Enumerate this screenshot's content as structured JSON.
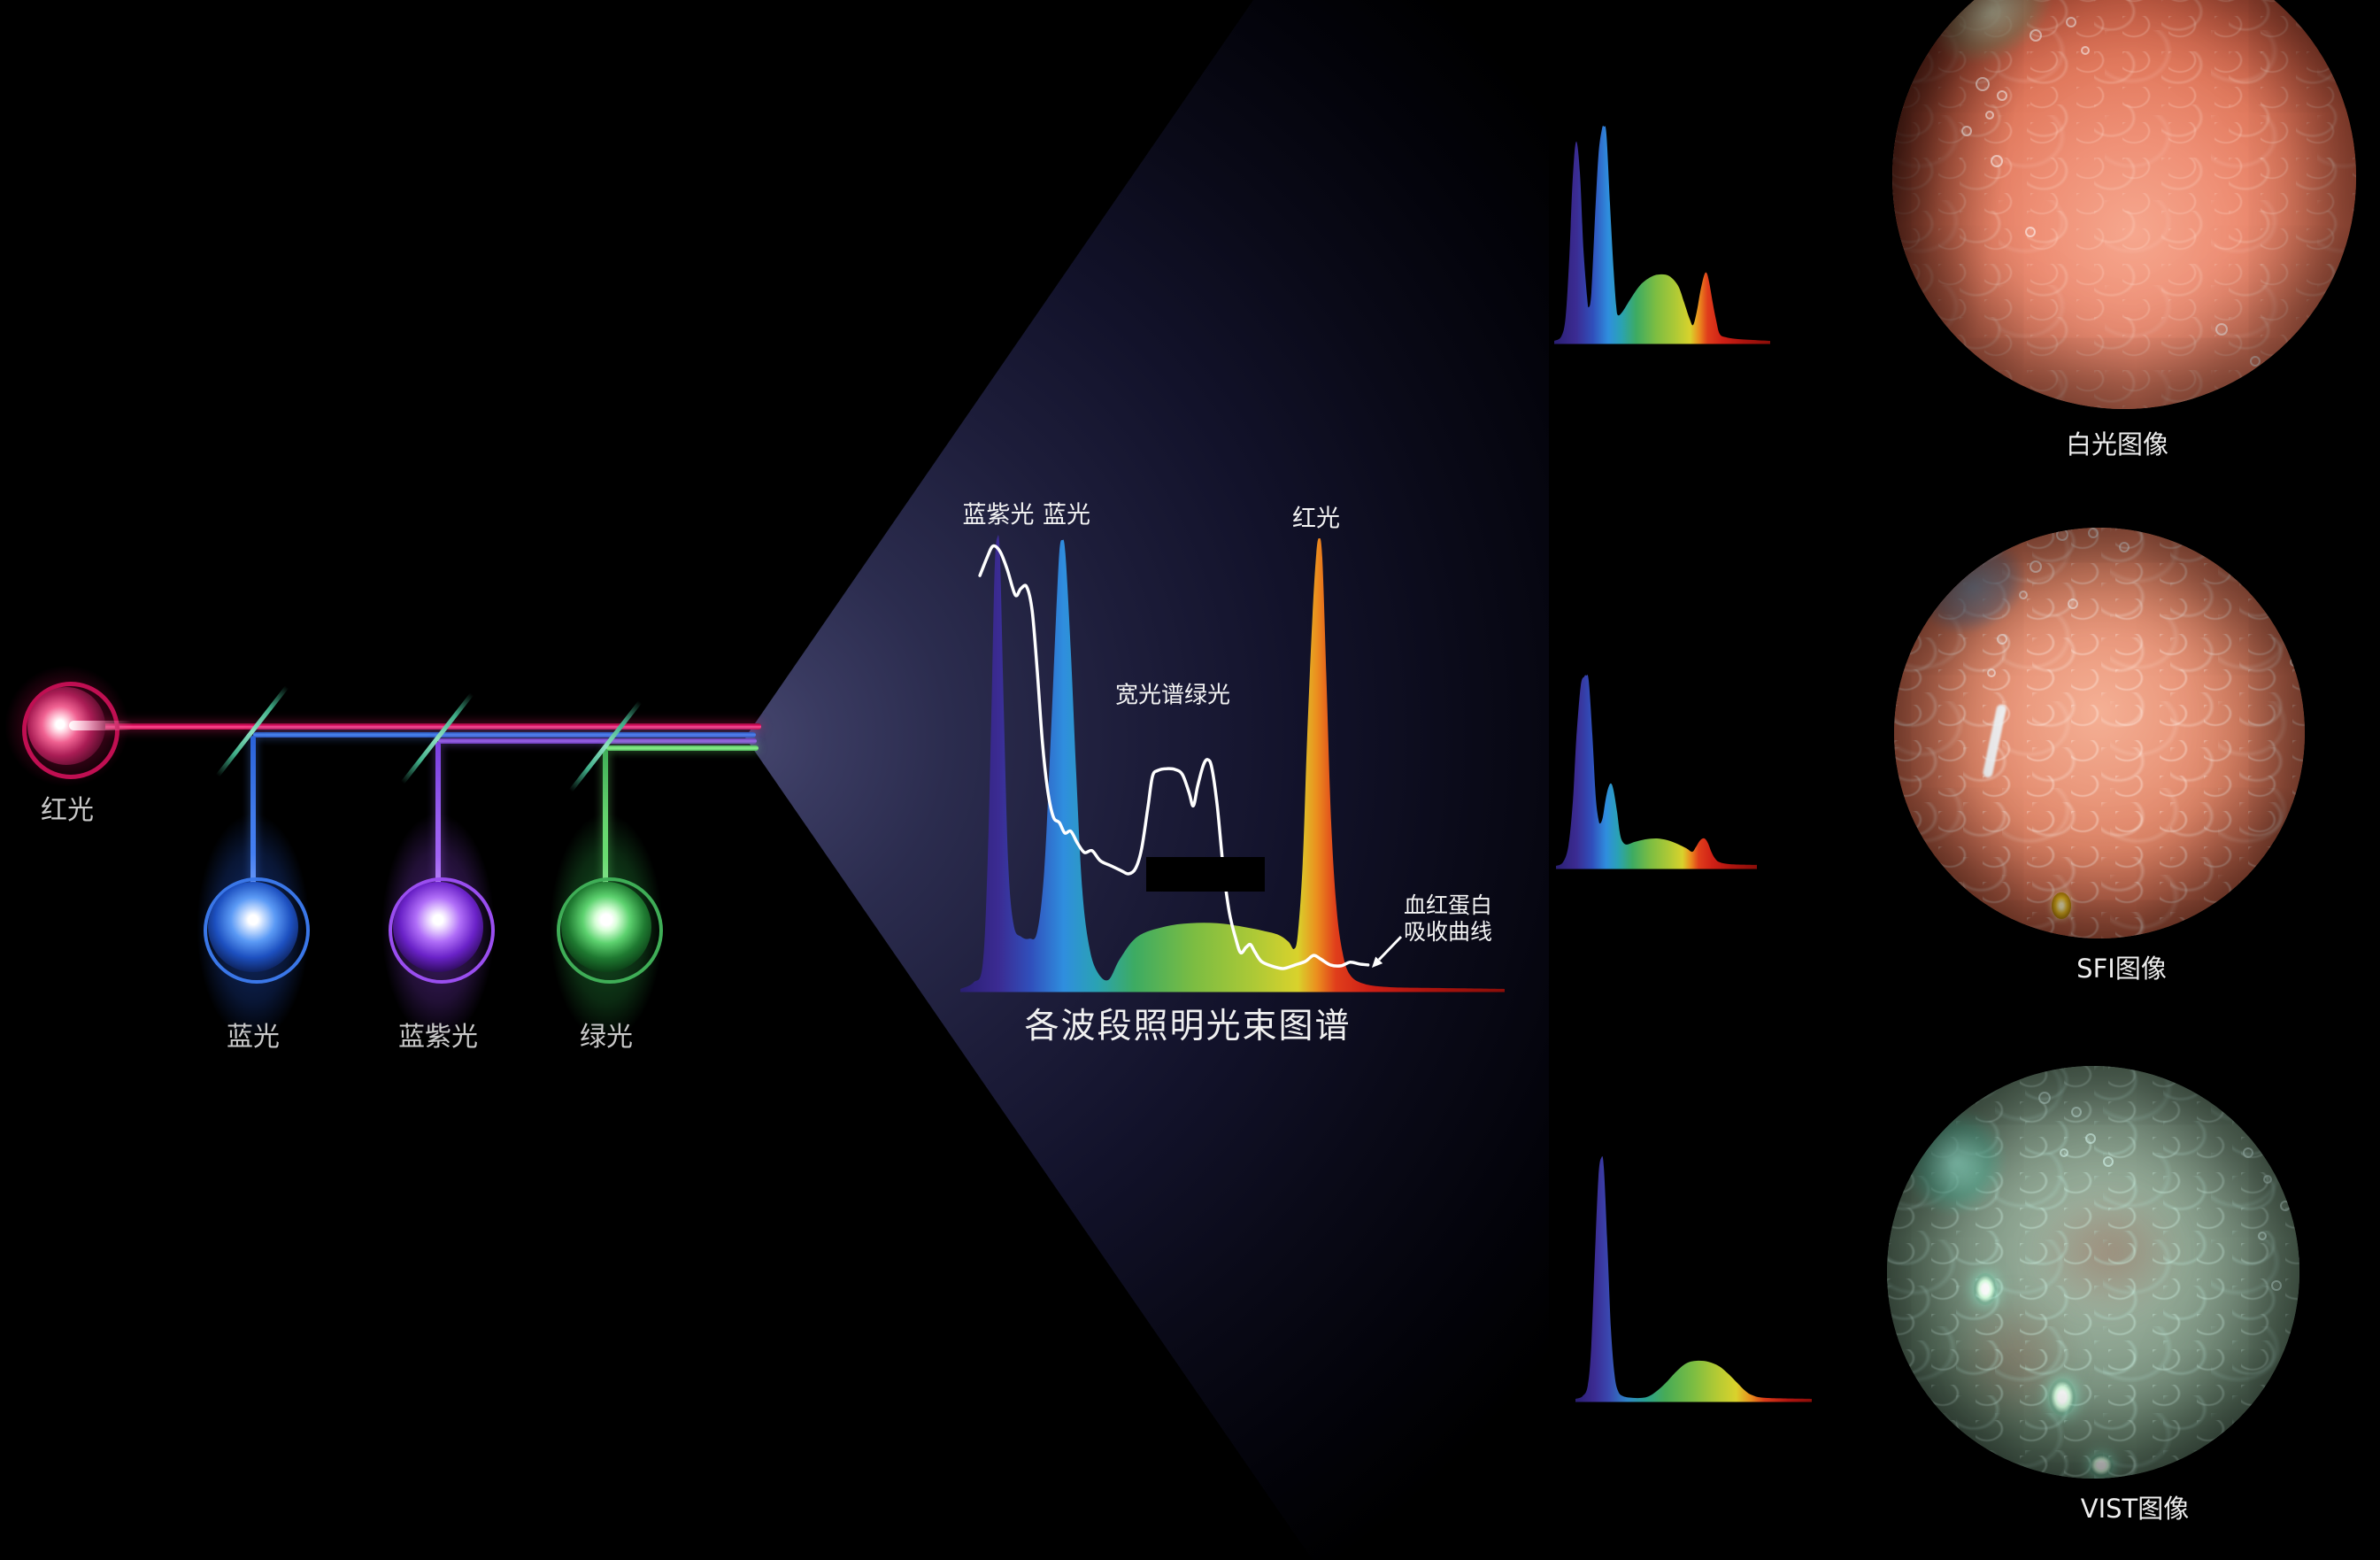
{
  "colors": {
    "background": "#000000",
    "wedge_core": "#45466e",
    "beam_red": "#e41163",
    "beam_blue": "#4b86f2",
    "beam_violet": "#9a63e8",
    "beam_green": "#8df08d",
    "mirror": "#5fc9a4",
    "label_gray": "#c9c9c9",
    "label_white": "#f4f4f4"
  },
  "left_diagram": {
    "sources": [
      {
        "label": "红光",
        "color": "#e41163"
      },
      {
        "label": "蓝光",
        "color": "#3a77e8"
      },
      {
        "label": "蓝紫光",
        "color": "#9a4ef0"
      },
      {
        "label": "绿光",
        "color": "#3fae57"
      }
    ]
  },
  "main_chart": {
    "title": "各波段照明光束图谱",
    "label_violet": "蓝紫光",
    "label_blue": "蓝光",
    "label_red": "红光",
    "label_green": "宽光谱绿光",
    "hemoglobin_line1": "血红蛋白",
    "hemoglobin_line2": "吸收曲线"
  },
  "right_panel": {
    "items": [
      {
        "caption": "白光图像"
      },
      {
        "caption": "SFI图像"
      },
      {
        "caption": "VIST图像"
      }
    ]
  },
  "chart_data": [
    {
      "id": "main_illumination_spectrum",
      "type": "area",
      "title": "各波段照明光束图谱",
      "xlabel": "",
      "ylabel": "",
      "grid": false,
      "legend": false,
      "peaks": [
        {
          "label": "蓝紫光",
          "rel_height": 1.0,
          "shape": "narrow"
        },
        {
          "label": "蓝光",
          "rel_height": 0.99,
          "shape": "narrow"
        },
        {
          "label": "宽光谱绿光",
          "rel_height": 0.15,
          "shape": "broad"
        },
        {
          "label": "红光",
          "rel_height": 0.99,
          "shape": "narrow"
        }
      ],
      "points": [
        [
          0,
          0
        ],
        [
          0.024,
          0.014
        ],
        [
          0.041,
          0.053
        ],
        [
          0.05,
          0.277
        ],
        [
          0.057,
          0.609
        ],
        [
          0.063,
          0.922
        ],
        [
          0.068,
          0.996
        ],
        [
          0.073,
          0.951
        ],
        [
          0.08,
          0.609
        ],
        [
          0.088,
          0.277
        ],
        [
          0.098,
          0.141
        ],
        [
          0.112,
          0.115
        ],
        [
          0.127,
          0.111
        ],
        [
          0.141,
          0.125
        ],
        [
          0.154,
          0.258
        ],
        [
          0.166,
          0.551
        ],
        [
          0.176,
          0.824
        ],
        [
          0.182,
          0.965
        ],
        [
          0.187,
          0.99
        ],
        [
          0.193,
          0.961
        ],
        [
          0.203,
          0.746
        ],
        [
          0.213,
          0.473
        ],
        [
          0.224,
          0.219
        ],
        [
          0.237,
          0.092
        ],
        [
          0.252,
          0.037
        ],
        [
          0.272,
          0.02
        ],
        [
          0.293,
          0.066
        ],
        [
          0.325,
          0.115
        ],
        [
          0.374,
          0.137
        ],
        [
          0.423,
          0.145
        ],
        [
          0.472,
          0.145
        ],
        [
          0.52,
          0.137
        ],
        [
          0.561,
          0.127
        ],
        [
          0.585,
          0.119
        ],
        [
          0.603,
          0.104
        ],
        [
          0.613,
          0.088
        ],
        [
          0.62,
          0.121
        ],
        [
          0.629,
          0.277
        ],
        [
          0.637,
          0.551
        ],
        [
          0.647,
          0.824
        ],
        [
          0.654,
          0.961
        ],
        [
          0.659,
          0.994
        ],
        [
          0.665,
          0.951
        ],
        [
          0.673,
          0.668
        ],
        [
          0.681,
          0.375
        ],
        [
          0.691,
          0.18
        ],
        [
          0.702,
          0.082
        ],
        [
          0.715,
          0.033
        ],
        [
          0.74,
          0.012
        ],
        [
          0.789,
          0.004
        ],
        [
          0.886,
          0.002
        ],
        [
          1,
          0
        ]
      ],
      "gradient_stops": [
        [
          0,
          "#2a1f72"
        ],
        [
          0.07,
          "#3b2b92"
        ],
        [
          0.13,
          "#3050bc"
        ],
        [
          0.19,
          "#2f8ede"
        ],
        [
          0.25,
          "#2aa2b4"
        ],
        [
          0.32,
          "#3dab62"
        ],
        [
          0.43,
          "#7cbd42"
        ],
        [
          0.54,
          "#adc936"
        ],
        [
          0.62,
          "#d9d22c"
        ],
        [
          0.655,
          "#eb8e1e"
        ],
        [
          0.69,
          "#e03e1b"
        ],
        [
          0.75,
          "#cf2016"
        ],
        [
          0.86,
          "#ad140e"
        ],
        [
          1,
          "#8a0e09"
        ]
      ],
      "overlay": {
        "name": "血红蛋白吸收曲线",
        "color": "#ffffff",
        "points": [
          [
            0.036,
            0.912
          ],
          [
            0.049,
            0.951
          ],
          [
            0.06,
            0.977
          ],
          [
            0.073,
            0.965
          ],
          [
            0.086,
            0.926
          ],
          [
            0.101,
            0.869
          ],
          [
            0.111,
            0.883
          ],
          [
            0.122,
            0.887
          ],
          [
            0.132,
            0.834
          ],
          [
            0.141,
            0.707
          ],
          [
            0.151,
            0.541
          ],
          [
            0.161,
            0.434
          ],
          [
            0.171,
            0.379
          ],
          [
            0.182,
            0.367
          ],
          [
            0.192,
            0.344
          ],
          [
            0.203,
            0.348
          ],
          [
            0.215,
            0.322
          ],
          [
            0.228,
            0.301
          ],
          [
            0.242,
            0.305
          ],
          [
            0.257,
            0.283
          ],
          [
            0.276,
            0.272
          ],
          [
            0.294,
            0.262
          ],
          [
            0.309,
            0.254
          ],
          [
            0.322,
            0.266
          ],
          [
            0.333,
            0.309
          ],
          [
            0.345,
            0.404
          ],
          [
            0.353,
            0.469
          ],
          [
            0.363,
            0.482
          ],
          [
            0.379,
            0.486
          ],
          [
            0.395,
            0.484
          ],
          [
            0.408,
            0.473
          ],
          [
            0.42,
            0.434
          ],
          [
            0.428,
            0.404
          ],
          [
            0.436,
            0.447
          ],
          [
            0.446,
            0.492
          ],
          [
            0.454,
            0.506
          ],
          [
            0.462,
            0.488
          ],
          [
            0.472,
            0.404
          ],
          [
            0.483,
            0.268
          ],
          [
            0.494,
            0.17
          ],
          [
            0.506,
            0.111
          ],
          [
            0.515,
            0.08
          ],
          [
            0.525,
            0.092
          ],
          [
            0.533,
            0.098
          ],
          [
            0.541,
            0.082
          ],
          [
            0.553,
            0.061
          ],
          [
            0.571,
            0.051
          ],
          [
            0.593,
            0.045
          ],
          [
            0.615,
            0.053
          ],
          [
            0.634,
            0.061
          ],
          [
            0.649,
            0.074
          ],
          [
            0.662,
            0.066
          ],
          [
            0.68,
            0.053
          ],
          [
            0.699,
            0.051
          ],
          [
            0.716,
            0.059
          ],
          [
            0.733,
            0.055
          ],
          [
            0.749,
            0.053
          ]
        ]
      }
    },
    {
      "id": "white_light_spectrum",
      "caption_for": "白光图像",
      "type": "area",
      "peaks": [
        {
          "label": "蓝紫光",
          "rel_height": 0.93
        },
        {
          "label": "蓝光",
          "rel_height": 1.0
        },
        {
          "label": "绿光",
          "rel_height": 0.31
        },
        {
          "label": "红光",
          "rel_height": 0.32
        }
      ],
      "points": [
        [
          0,
          0
        ],
        [
          0.033,
          0.021
        ],
        [
          0.053,
          0.112
        ],
        [
          0.07,
          0.393
        ],
        [
          0.086,
          0.764
        ],
        [
          0.102,
          0.93
        ],
        [
          0.119,
          0.785
        ],
        [
          0.135,
          0.434
        ],
        [
          0.152,
          0.207
        ],
        [
          0.16,
          0.157
        ],
        [
          0.172,
          0.227
        ],
        [
          0.189,
          0.579
        ],
        [
          0.205,
          0.868
        ],
        [
          0.221,
          0.988
        ],
        [
          0.23,
          1
        ],
        [
          0.242,
          0.963
        ],
        [
          0.258,
          0.64
        ],
        [
          0.275,
          0.331
        ],
        [
          0.287,
          0.165
        ],
        [
          0.295,
          0.12
        ],
        [
          0.316,
          0.136
        ],
        [
          0.352,
          0.194
        ],
        [
          0.398,
          0.26
        ],
        [
          0.447,
          0.298
        ],
        [
          0.488,
          0.31
        ],
        [
          0.533,
          0.302
        ],
        [
          0.574,
          0.256
        ],
        [
          0.602,
          0.178
        ],
        [
          0.627,
          0.103
        ],
        [
          0.643,
          0.074
        ],
        [
          0.66,
          0.136
        ],
        [
          0.676,
          0.227
        ],
        [
          0.693,
          0.302
        ],
        [
          0.705,
          0.318
        ],
        [
          0.717,
          0.277
        ],
        [
          0.734,
          0.178
        ],
        [
          0.75,
          0.095
        ],
        [
          0.766,
          0.033
        ],
        [
          0.795,
          0.017
        ],
        [
          0.857,
          0.008
        ],
        [
          1,
          0
        ]
      ],
      "gradient_stops": [
        [
          0,
          "#2a1f72"
        ],
        [
          0.1,
          "#3b2b92"
        ],
        [
          0.18,
          "#3050bc"
        ],
        [
          0.25,
          "#2f8ede"
        ],
        [
          0.31,
          "#2aa2b4"
        ],
        [
          0.38,
          "#3dab62"
        ],
        [
          0.47,
          "#7cbd42"
        ],
        [
          0.56,
          "#adc936"
        ],
        [
          0.63,
          "#d9d22c"
        ],
        [
          0.67,
          "#eb8e1e"
        ],
        [
          0.71,
          "#e03e1b"
        ],
        [
          0.78,
          "#cf2016"
        ],
        [
          0.88,
          "#ad140e"
        ],
        [
          1,
          "#8a0e09"
        ]
      ]
    },
    {
      "id": "sfi_spectrum",
      "caption_for": "SFI图像",
      "type": "area",
      "peaks": [
        {
          "label": "蓝紫光",
          "rel_height": 1.0
        },
        {
          "label": "蓝光",
          "rel_height": 0.43
        },
        {
          "label": "绿光",
          "rel_height": 0.14
        },
        {
          "label": "红光",
          "rel_height": 0.15
        }
      ],
      "points": [
        [
          0,
          0
        ],
        [
          0.035,
          0.019
        ],
        [
          0.062,
          0.107
        ],
        [
          0.084,
          0.34
        ],
        [
          0.101,
          0.665
        ],
        [
          0.123,
          0.944
        ],
        [
          0.141,
          0.995
        ],
        [
          0.15,
          1
        ],
        [
          0.163,
          0.972
        ],
        [
          0.181,
          0.688
        ],
        [
          0.198,
          0.363
        ],
        [
          0.211,
          0.247
        ],
        [
          0.22,
          0.223
        ],
        [
          0.233,
          0.256
        ],
        [
          0.247,
          0.349
        ],
        [
          0.26,
          0.409
        ],
        [
          0.273,
          0.433
        ],
        [
          0.286,
          0.4
        ],
        [
          0.304,
          0.284
        ],
        [
          0.317,
          0.177
        ],
        [
          0.33,
          0.13
        ],
        [
          0.352,
          0.112
        ],
        [
          0.392,
          0.126
        ],
        [
          0.449,
          0.14
        ],
        [
          0.502,
          0.144
        ],
        [
          0.555,
          0.135
        ],
        [
          0.604,
          0.116
        ],
        [
          0.648,
          0.093
        ],
        [
          0.678,
          0.074
        ],
        [
          0.696,
          0.098
        ],
        [
          0.714,
          0.13
        ],
        [
          0.731,
          0.144
        ],
        [
          0.744,
          0.14
        ],
        [
          0.758,
          0.116
        ],
        [
          0.775,
          0.07
        ],
        [
          0.793,
          0.037
        ],
        [
          0.815,
          0.019
        ],
        [
          0.868,
          0.009
        ],
        [
          1,
          0.005
        ]
      ],
      "gradient_stops": [
        [
          0,
          "#2a1f72"
        ],
        [
          0.1,
          "#3b2b92"
        ],
        [
          0.18,
          "#3050bc"
        ],
        [
          0.25,
          "#2f8ede"
        ],
        [
          0.31,
          "#2aa2b4"
        ],
        [
          0.38,
          "#3dab62"
        ],
        [
          0.47,
          "#7cbd42"
        ],
        [
          0.56,
          "#adc936"
        ],
        [
          0.63,
          "#d9d22c"
        ],
        [
          0.67,
          "#eb8e1e"
        ],
        [
          0.71,
          "#e03e1b"
        ],
        [
          0.78,
          "#cf2016"
        ],
        [
          0.88,
          "#ad140e"
        ],
        [
          1,
          "#8a0e09"
        ]
      ]
    },
    {
      "id": "vist_spectrum",
      "caption_for": "VIST图像",
      "type": "area",
      "peaks": [
        {
          "label": "蓝紫光",
          "rel_height": 1.0
        },
        {
          "label": "蓝光",
          "rel_height": 0.0
        },
        {
          "label": "绿光",
          "rel_height": 0.16
        },
        {
          "label": "红光",
          "rel_height": 0.0
        }
      ],
      "points": [
        [
          0,
          0
        ],
        [
          0.03,
          0.011
        ],
        [
          0.052,
          0.055
        ],
        [
          0.067,
          0.221
        ],
        [
          0.082,
          0.588
        ],
        [
          0.097,
          0.919
        ],
        [
          0.109,
          1
        ],
        [
          0.12,
          0.963
        ],
        [
          0.135,
          0.643
        ],
        [
          0.15,
          0.294
        ],
        [
          0.165,
          0.103
        ],
        [
          0.18,
          0.033
        ],
        [
          0.202,
          0.011
        ],
        [
          0.243,
          0.004
        ],
        [
          0.281,
          0.004
        ],
        [
          0.311,
          0.011
        ],
        [
          0.345,
          0.033
        ],
        [
          0.382,
          0.066
        ],
        [
          0.423,
          0.11
        ],
        [
          0.468,
          0.147
        ],
        [
          0.513,
          0.158
        ],
        [
          0.562,
          0.154
        ],
        [
          0.607,
          0.136
        ],
        [
          0.648,
          0.103
        ],
        [
          0.685,
          0.066
        ],
        [
          0.719,
          0.033
        ],
        [
          0.749,
          0.015
        ],
        [
          0.805,
          0.004
        ],
        [
          1,
          0
        ]
      ],
      "gradient_stops": [
        [
          0,
          "#2a1f72"
        ],
        [
          0.08,
          "#3b2b92"
        ],
        [
          0.14,
          "#3a47b0"
        ],
        [
          0.22,
          "#2f86c8"
        ],
        [
          0.3,
          "#2aa28f"
        ],
        [
          0.38,
          "#47ab56"
        ],
        [
          0.5,
          "#7cbd42"
        ],
        [
          0.6,
          "#b4ca34"
        ],
        [
          0.68,
          "#d9d22c"
        ],
        [
          0.74,
          "#e8921e"
        ],
        [
          0.8,
          "#d93c1a"
        ],
        [
          0.9,
          "#b01410"
        ],
        [
          1,
          "#8a0e09"
        ]
      ]
    }
  ]
}
